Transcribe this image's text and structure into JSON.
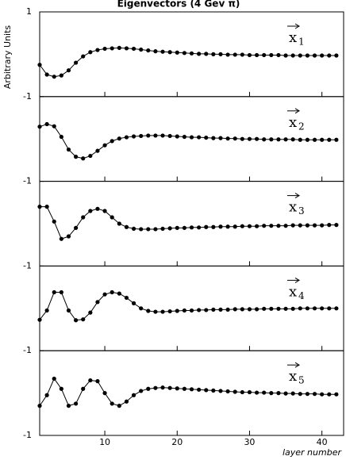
{
  "chart_data": {
    "type": "line",
    "title": "Eigenvectors (4 Gev π)",
    "ylabel": "Arbitrary Units",
    "xlabel": "layer number",
    "xlim": [
      1,
      43
    ],
    "xticks": [
      10,
      20,
      30,
      40
    ],
    "color": "#000000",
    "x": [
      1,
      2,
      3,
      4,
      5,
      6,
      7,
      8,
      9,
      10,
      11,
      12,
      13,
      14,
      15,
      16,
      17,
      18,
      19,
      20,
      21,
      22,
      23,
      24,
      25,
      26,
      27,
      28,
      29,
      30,
      31,
      32,
      33,
      34,
      35,
      36,
      37,
      38,
      39,
      40,
      41,
      42
    ],
    "panels": [
      {
        "label": "x",
        "subscript": "1",
        "ylim": [
          -1,
          1
        ],
        "yticks": [
          -1,
          1
        ],
        "values": [
          -0.25,
          -0.48,
          -0.53,
          -0.5,
          -0.38,
          -0.2,
          -0.05,
          0.05,
          0.1,
          0.13,
          0.14,
          0.15,
          0.14,
          0.13,
          0.11,
          0.09,
          0.07,
          0.06,
          0.05,
          0.04,
          0.03,
          0.02,
          0.01,
          0.01,
          0.0,
          0.0,
          -0.01,
          -0.01,
          -0.01,
          -0.02,
          -0.02,
          -0.02,
          -0.02,
          -0.02,
          -0.03,
          -0.03,
          -0.03,
          -0.03,
          -0.03,
          -0.03,
          -0.03,
          -0.03
        ]
      },
      {
        "label": "x",
        "subscript": "2",
        "ylim": [
          -1,
          1
        ],
        "yticks": [
          -1
        ],
        "values": [
          0.29,
          0.35,
          0.3,
          0.05,
          -0.25,
          -0.42,
          -0.46,
          -0.4,
          -0.28,
          -0.15,
          -0.05,
          0.01,
          0.04,
          0.06,
          0.07,
          0.08,
          0.08,
          0.08,
          0.07,
          0.06,
          0.05,
          0.04,
          0.04,
          0.03,
          0.02,
          0.02,
          0.01,
          0.01,
          0.0,
          0.0,
          0.0,
          -0.01,
          -0.01,
          -0.01,
          -0.01,
          -0.01,
          -0.02,
          -0.02,
          -0.02,
          -0.02,
          -0.02,
          -0.02
        ]
      },
      {
        "label": "x",
        "subscript": "3",
        "ylim": [
          -1,
          1
        ],
        "yticks": [
          -1
        ],
        "values": [
          0.4,
          0.4,
          0.05,
          -0.36,
          -0.3,
          -0.1,
          0.15,
          0.3,
          0.35,
          0.3,
          0.15,
          0.0,
          -0.08,
          -0.12,
          -0.13,
          -0.13,
          -0.13,
          -0.12,
          -0.11,
          -0.1,
          -0.1,
          -0.09,
          -0.09,
          -0.08,
          -0.08,
          -0.07,
          -0.07,
          -0.07,
          -0.06,
          -0.06,
          -0.06,
          -0.05,
          -0.05,
          -0.05,
          -0.05,
          -0.04,
          -0.04,
          -0.04,
          -0.04,
          -0.04,
          -0.03,
          -0.03
        ]
      },
      {
        "label": "x",
        "subscript": "4",
        "ylim": [
          -1,
          1
        ],
        "yticks": [
          -1
        ],
        "values": [
          -0.27,
          -0.05,
          0.38,
          0.38,
          -0.05,
          -0.28,
          -0.26,
          -0.1,
          0.15,
          0.33,
          0.38,
          0.35,
          0.25,
          0.12,
          0.0,
          -0.06,
          -0.08,
          -0.08,
          -0.07,
          -0.06,
          -0.05,
          -0.05,
          -0.04,
          -0.04,
          -0.03,
          -0.03,
          -0.03,
          -0.02,
          -0.02,
          -0.02,
          -0.02,
          -0.01,
          -0.01,
          -0.01,
          -0.01,
          -0.01,
          0.0,
          0.0,
          0.0,
          0.0,
          0.0,
          0.0
        ]
      },
      {
        "label": "x",
        "subscript": "5",
        "ylim": [
          -1,
          1
        ],
        "yticks": [
          -1
        ],
        "values": [
          -0.3,
          -0.05,
          0.34,
          0.1,
          -0.3,
          -0.25,
          0.1,
          0.3,
          0.28,
          0.0,
          -0.25,
          -0.3,
          -0.2,
          -0.05,
          0.05,
          0.1,
          0.12,
          0.13,
          0.12,
          0.11,
          0.1,
          0.09,
          0.08,
          0.07,
          0.06,
          0.05,
          0.04,
          0.03,
          0.02,
          0.02,
          0.01,
          0.01,
          0.0,
          0.0,
          -0.01,
          -0.01,
          -0.02,
          -0.02,
          -0.02,
          -0.03,
          -0.03,
          -0.03
        ]
      }
    ]
  }
}
